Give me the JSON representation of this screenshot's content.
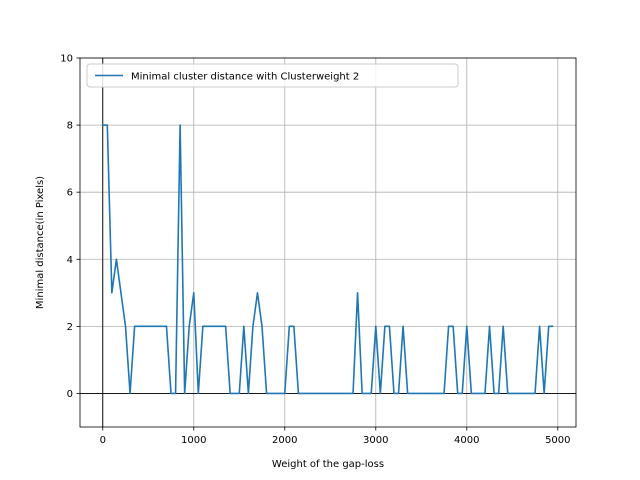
{
  "chart_data": {
    "type": "line",
    "title": "",
    "xlabel": "Weight of the gap-loss",
    "ylabel": "Minimal distance(in Pixels)",
    "xlim": [
      -250,
      5200
    ],
    "ylim": [
      -1,
      10
    ],
    "xticks": [
      0,
      1000,
      2000,
      3000,
      4000,
      5000
    ],
    "yticks": [
      0,
      2,
      4,
      6,
      8,
      10
    ],
    "grid": true,
    "zero_lines": true,
    "legend_position": "top-left",
    "series": [
      {
        "name": "Minimal cluster distance with Clusterweight 2",
        "color": "#1f77b4",
        "x": [
          0,
          50,
          100,
          150,
          200,
          250,
          300,
          350,
          400,
          450,
          500,
          550,
          600,
          650,
          700,
          750,
          800,
          850,
          900,
          950,
          1000,
          1050,
          1100,
          1150,
          1200,
          1250,
          1300,
          1350,
          1400,
          1450,
          1500,
          1550,
          1600,
          1650,
          1700,
          1750,
          1800,
          1850,
          1900,
          1950,
          2000,
          2050,
          2100,
          2150,
          2200,
          2250,
          2300,
          2350,
          2400,
          2450,
          2500,
          2550,
          2600,
          2650,
          2700,
          2750,
          2800,
          2850,
          2900,
          2950,
          3000,
          3050,
          3100,
          3150,
          3200,
          3250,
          3300,
          3350,
          3400,
          3450,
          3500,
          3550,
          3600,
          3650,
          3700,
          3750,
          3800,
          3850,
          3900,
          3950,
          4000,
          4050,
          4100,
          4150,
          4200,
          4250,
          4300,
          4350,
          4400,
          4450,
          4500,
          4550,
          4600,
          4650,
          4700,
          4750,
          4800,
          4850,
          4900,
          4950
        ],
        "y": [
          8,
          8,
          3,
          4,
          3,
          2,
          0,
          2,
          2,
          2,
          2,
          2,
          2,
          2,
          2,
          0,
          0,
          8,
          0,
          2,
          3,
          0,
          2,
          2,
          2,
          2,
          2,
          2,
          0,
          0,
          0,
          2,
          0,
          2,
          3,
          2,
          0,
          0,
          0,
          0,
          0,
          2,
          2,
          0,
          0,
          0,
          0,
          0,
          0,
          0,
          0,
          0,
          0,
          0,
          0,
          0,
          3,
          0,
          0,
          0,
          2,
          0,
          2,
          2,
          0,
          0,
          2,
          0,
          0,
          0,
          0,
          0,
          0,
          0,
          0,
          0,
          2,
          2,
          0,
          0,
          2,
          0,
          0,
          0,
          0,
          2,
          0,
          0,
          2,
          0,
          0,
          0,
          0,
          0,
          0,
          0,
          2,
          0,
          2,
          2
        ]
      }
    ]
  }
}
